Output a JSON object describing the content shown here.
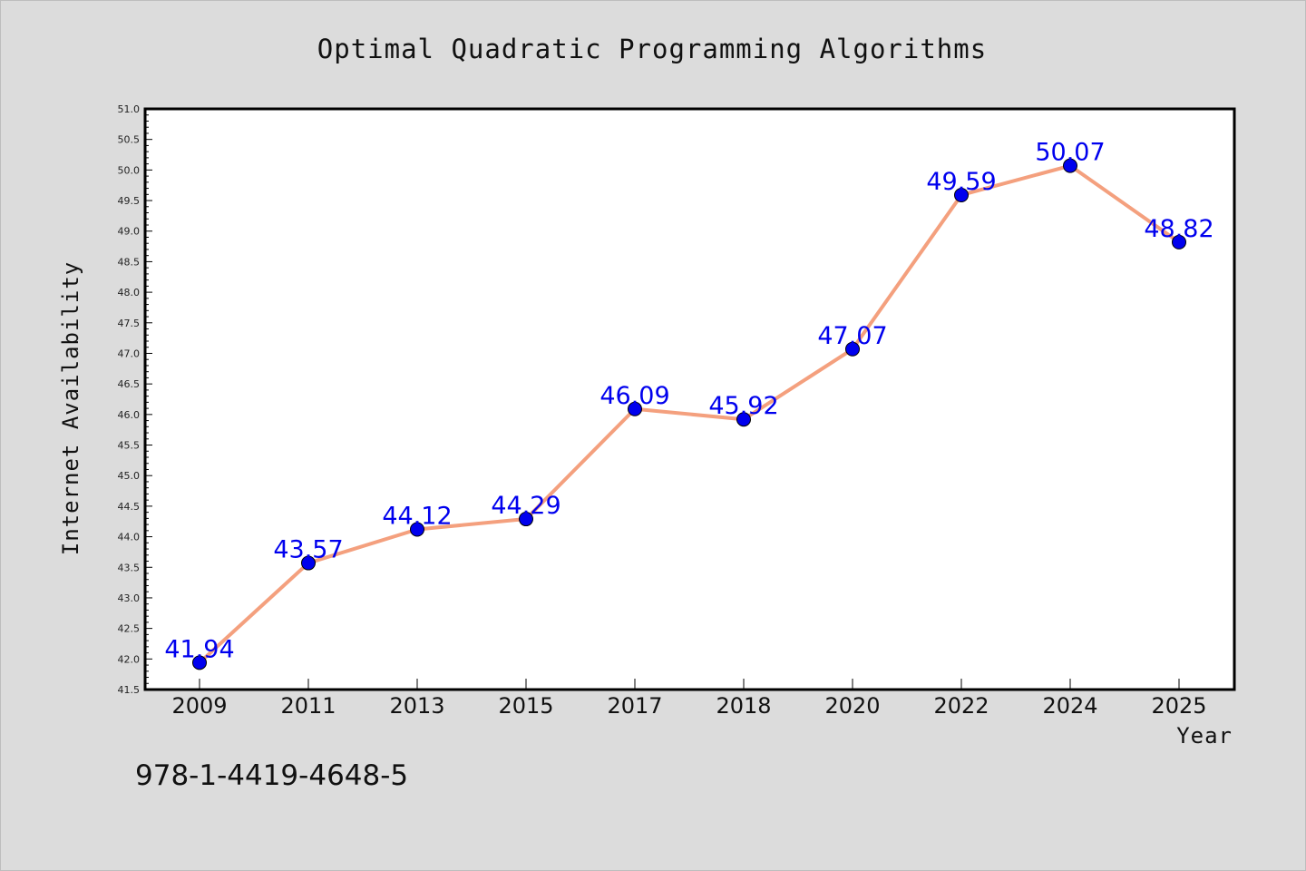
{
  "chart_data": {
    "type": "line",
    "title": "Optimal Quadratic Programming Algorithms",
    "xlabel": "Year",
    "ylabel": "Internet Availability",
    "categories": [
      "2009",
      "2011",
      "2013",
      "2015",
      "2017",
      "2018",
      "2020",
      "2022",
      "2024",
      "2025"
    ],
    "series": [
      {
        "values": [
          41.94,
          43.57,
          44.12,
          44.29,
          46.09,
          45.92,
          47.07,
          49.59,
          50.07,
          48.82
        ],
        "labels": [
          "41.94",
          "43.57",
          "44.12",
          "44.29",
          "46.09",
          "45.92",
          "47.07",
          "49.59",
          "50.07",
          "48.82"
        ],
        "line_color": "#f4a07e",
        "marker_color": "#0000ee",
        "label_color": "#0000ee"
      }
    ],
    "ylim": [
      41.5,
      51.0
    ],
    "yticks": [
      "41.5",
      "42.0",
      "42.5",
      "43.0",
      "43.5",
      "44.0",
      "44.5",
      "45.0",
      "45.5",
      "46.0",
      "46.5",
      "47.0",
      "47.5",
      "48.0",
      "48.5",
      "49.0",
      "49.5",
      "50.0",
      "50.5",
      "51.0"
    ],
    "grid": false,
    "legend": "none",
    "plot_background": "#ffffff",
    "figure_background": "#dcdcdc"
  },
  "footer": {
    "isbn": "978-1-4419-4648-5"
  }
}
